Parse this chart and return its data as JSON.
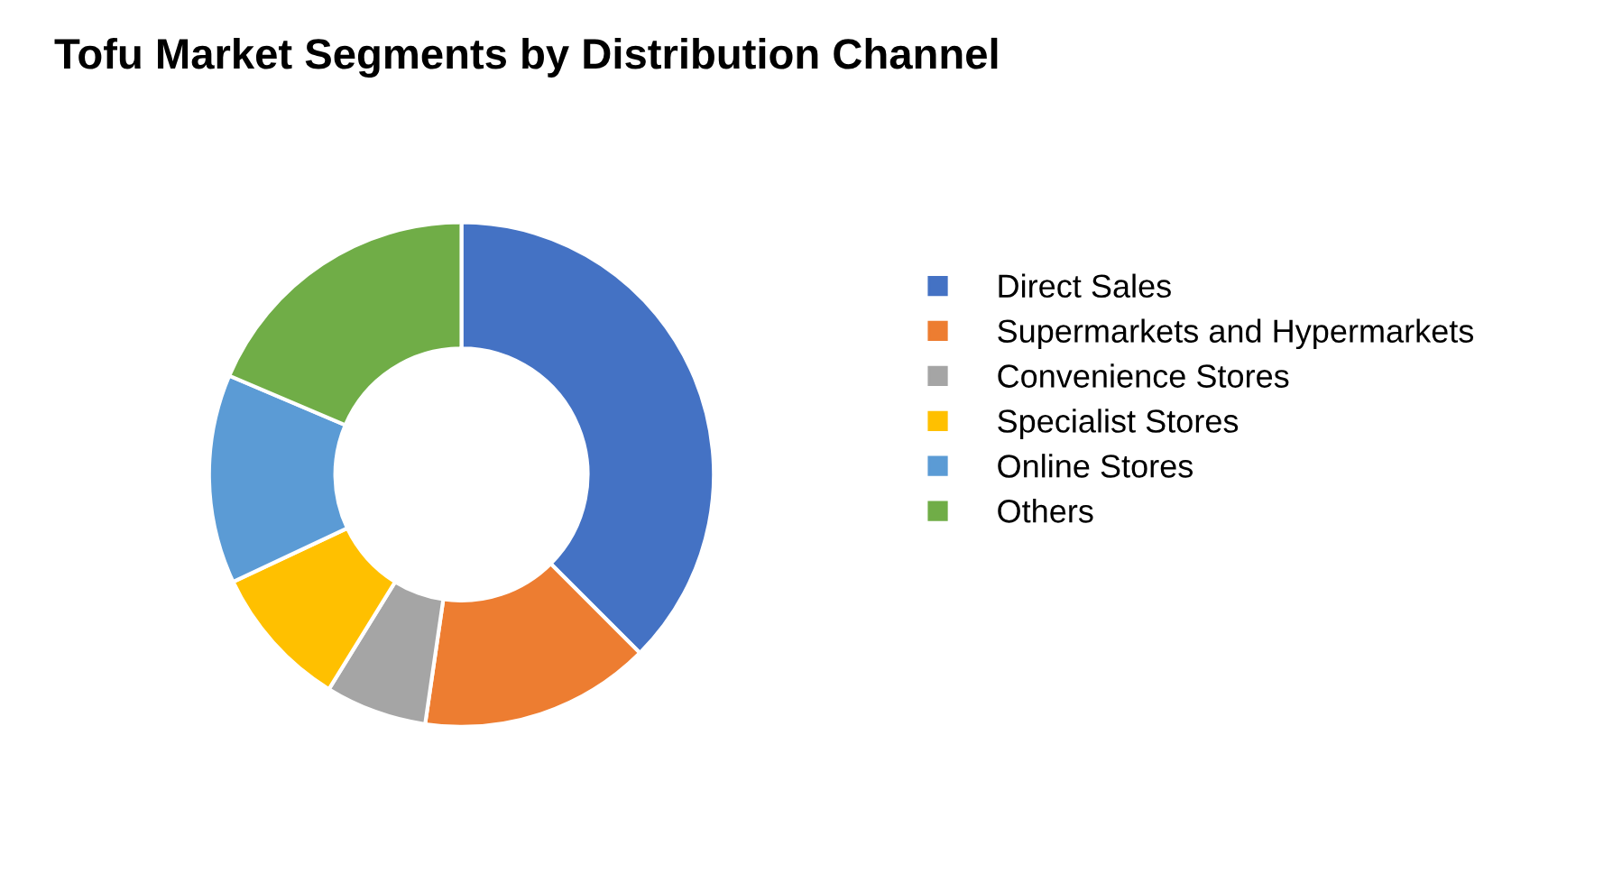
{
  "chart_data": {
    "type": "donut",
    "title": "Tofu Market Segments by Distribution Channel",
    "categories": [
      "Direct Sales",
      "Supermarkets and Hypermarkets",
      "Convenience Stores",
      "Specialist Stores",
      "Online Stores",
      "Others"
    ],
    "values": [
      37.5,
      14.8,
      6.5,
      9.2,
      13.4,
      18.6
    ],
    "colors": [
      "#4472c4",
      "#ed7d31",
      "#a5a5a5",
      "#ffc000",
      "#5b9bd5",
      "#70ad47"
    ],
    "legend": "right"
  }
}
